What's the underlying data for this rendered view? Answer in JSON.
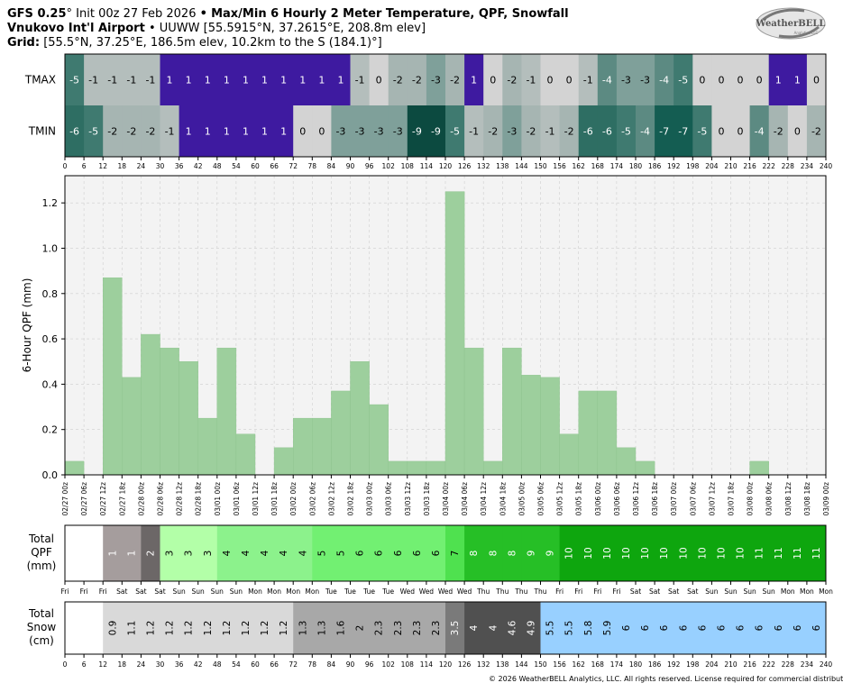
{
  "header": {
    "model": "GFS 0.25",
    "init": "Init 00z 27 Feb 2026",
    "product": "Max/Min 6 Hourly 2 Meter Temperature, QPF, Snowfall",
    "station": "Vnukovo Int'l Airport",
    "station_meta": "UUWW [55.5915°N, 37.2615°E, 208.8m elev]",
    "grid_label": "Grid",
    "grid_meta": "[55.5°N, 37.25°E, 186.5m elev, 10.2km to the S (184.1)°]"
  },
  "logo": {
    "text": "WeatherBELL",
    "sub": "Analytics LLC"
  },
  "footer": {
    "copyright": "© 2026 WeatherBELL Analytics, LLC. All rights reserved. License required for commercial distribution."
  },
  "hour_ticks": [
    "0",
    "6",
    "12",
    "18",
    "24",
    "30",
    "36",
    "42",
    "48",
    "54",
    "60",
    "66",
    "72",
    "78",
    "84",
    "90",
    "96",
    "102",
    "108",
    "114",
    "120",
    "126",
    "132",
    "138",
    "144",
    "150",
    "156",
    "162",
    "168",
    "174",
    "180",
    "186",
    "192",
    "198",
    "204",
    "210",
    "216",
    "222",
    "228",
    "234",
    "240"
  ],
  "date_ticks": [
    "02/27 00z",
    "02/27 06z",
    "02/27 12z",
    "02/27 18z",
    "02/28 00z",
    "02/28 06z",
    "02/28 12z",
    "02/28 18z",
    "03/01 00z",
    "03/01 06z",
    "03/01 12z",
    "03/01 18z",
    "03/02 00z",
    "03/02 06z",
    "03/02 12z",
    "03/02 18z",
    "03/03 00z",
    "03/03 06z",
    "03/03 12z",
    "03/03 18z",
    "03/04 00z",
    "03/04 06z",
    "03/04 12z",
    "03/04 18z",
    "03/05 00z",
    "03/05 06z",
    "03/05 12z",
    "03/05 18z",
    "03/06 00z",
    "03/06 06z",
    "03/06 12z",
    "03/06 18z",
    "03/07 00z",
    "03/07 06z",
    "03/07 12z",
    "03/07 18z",
    "03/08 00z",
    "03/08 06z",
    "03/08 12z",
    "03/08 18z",
    "03/09 00z"
  ],
  "day_ticks": [
    "Fri",
    "Fri",
    "Fri",
    "Sat",
    "Sat",
    "Sat",
    "Sun",
    "Sun",
    "Sun",
    "Sun",
    "Mon",
    "Mon",
    "Mon",
    "Mon",
    "Tue",
    "Tue",
    "Tue",
    "Tue",
    "Wed",
    "Wed",
    "Wed",
    "Wed",
    "Thu",
    "Thu",
    "Thu",
    "Thu",
    "Fri",
    "Fri",
    "Fri",
    "Fri",
    "Sat",
    "Sat",
    "Sat",
    "Sat",
    "Sun",
    "Sun",
    "Sun",
    "Sun",
    "Mon",
    "Mon",
    "Mon"
  ],
  "chart_data": [
    {
      "type": "heatmap",
      "name": "temperature",
      "row_labels": [
        "TMAX",
        "TMIN"
      ],
      "x": [
        0,
        6,
        12,
        18,
        24,
        30,
        36,
        42,
        48,
        54,
        60,
        66,
        72,
        78,
        84,
        90,
        96,
        102,
        108,
        114,
        120,
        126,
        132,
        138,
        144,
        150,
        156,
        162,
        168,
        174,
        180,
        186,
        192,
        198,
        204,
        210,
        216,
        222,
        228,
        234
      ],
      "tmax": [
        -5,
        -1,
        -1,
        -1,
        -1,
        1,
        1,
        1,
        1,
        1,
        1,
        1,
        1,
        1,
        1,
        -1,
        0,
        -2,
        -2,
        -3,
        -2,
        1,
        0,
        -2,
        -1,
        0,
        0,
        -1,
        -4,
        -3,
        -3,
        -4,
        -5,
        0,
        0,
        0,
        0,
        1,
        1,
        0
      ],
      "tmin": [
        -6,
        -5,
        -2,
        -2,
        -2,
        -1,
        1,
        1,
        1,
        1,
        1,
        1,
        0,
        0,
        -3,
        -3,
        -3,
        -3,
        -9,
        -9,
        -5,
        -1,
        -2,
        -3,
        -2,
        -1,
        -2,
        -6,
        -6,
        -5,
        -4,
        -7,
        -7,
        -5,
        0,
        0,
        -4,
        -2,
        0,
        -2
      ]
    },
    {
      "type": "bar",
      "name": "qpf",
      "x": [
        0,
        6,
        12,
        18,
        24,
        30,
        36,
        42,
        48,
        54,
        60,
        66,
        72,
        78,
        84,
        90,
        96,
        102,
        108,
        114,
        120,
        126,
        132,
        138,
        144,
        150,
        156,
        162,
        168,
        174,
        180,
        186,
        192,
        198,
        204,
        210,
        216,
        222,
        228,
        234
      ],
      "values": [
        0.06,
        0,
        0.87,
        0.43,
        0.62,
        0.56,
        0.5,
        0.25,
        0.56,
        0.18,
        0,
        0.12,
        0.25,
        0.25,
        0.37,
        0.5,
        0.31,
        0.06,
        0.06,
        0.06,
        1.25,
        0.56,
        0.06,
        0.56,
        0.44,
        0.43,
        0.18,
        0.37,
        0.37,
        0.12,
        0.06,
        0,
        0,
        0,
        0,
        0,
        0.06,
        0,
        0,
        0
      ],
      "ylabel": "6-Hour QPF (mm)",
      "ylim": [
        0,
        1.32
      ],
      "yticks": [
        "0.0",
        "0.2",
        "0.4",
        "0.6",
        "0.8",
        "1.0",
        "1.2"
      ],
      "grid": true
    },
    {
      "type": "table",
      "name": "total_qpf",
      "row_label": [
        "Total",
        "QPF",
        "(mm)"
      ],
      "x": [
        12,
        18,
        24,
        30,
        36,
        42,
        48,
        54,
        60,
        66,
        72,
        78,
        84,
        90,
        96,
        102,
        108,
        114,
        120,
        126,
        132,
        138,
        144,
        150,
        156,
        162,
        168,
        174,
        180,
        186,
        192,
        198,
        204,
        210,
        216,
        222,
        228,
        234
      ],
      "values": [
        "1",
        "1",
        "2",
        "3",
        "3",
        "3",
        "4",
        "4",
        "4",
        "4",
        "4",
        "5",
        "5",
        "6",
        "6",
        "6",
        "6",
        "6",
        "7",
        "8",
        "8",
        "8",
        "9",
        "9",
        "10",
        "10",
        "10",
        "10",
        "10",
        "10",
        "10",
        "10",
        "10",
        "10",
        "11",
        "11",
        "11",
        "11"
      ]
    },
    {
      "type": "table",
      "name": "total_snow",
      "row_label": [
        "Total",
        "Snow",
        "(cm)"
      ],
      "x": [
        12,
        18,
        24,
        30,
        36,
        42,
        48,
        54,
        60,
        66,
        72,
        78,
        84,
        90,
        96,
        102,
        108,
        114,
        120,
        126,
        132,
        138,
        144,
        150,
        156,
        162,
        168,
        174,
        180,
        186,
        192,
        198,
        204,
        210,
        216,
        222,
        228,
        234
      ],
      "values": [
        "0.9",
        "1.1",
        "1.2",
        "1.2",
        "1.2",
        "1.2",
        "1.2",
        "1.2",
        "1.2",
        "1.2",
        "1.3",
        "1.3",
        "1.6",
        "2",
        "2.3",
        "2.3",
        "2.3",
        "2.3",
        "3.5",
        "4",
        "4",
        "4.6",
        "4.9",
        "5.5",
        "5.5",
        "5.8",
        "5.9",
        "6",
        "6",
        "6",
        "6",
        "6",
        "6",
        "6",
        "6",
        "6",
        "6",
        "6"
      ]
    }
  ]
}
